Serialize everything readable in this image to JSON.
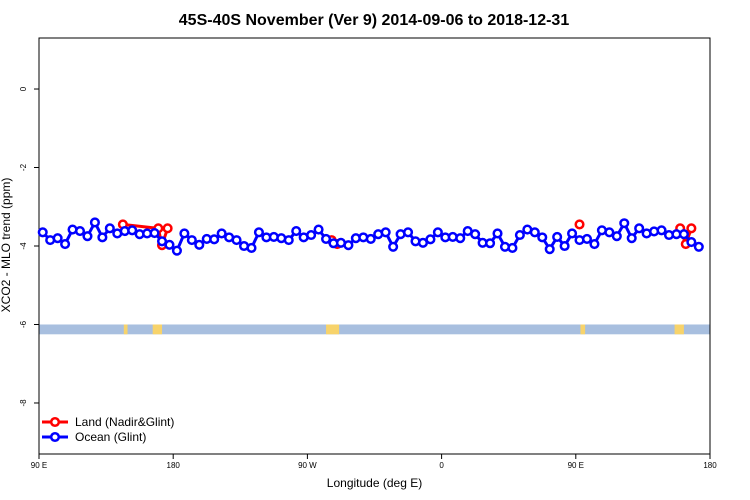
{
  "chart_data": {
    "type": "line",
    "title": "45S-40S November (Ver 9)   2014-09-06 to 2018-12-31",
    "xlabel": "Longitude (deg E)",
    "ylabel": "XCO2 - MLO trend (ppm)",
    "xlim": [
      90,
      450
    ],
    "ylim": [
      -9.3,
      1.3
    ],
    "x_ticks": [
      {
        "value": 90,
        "label": "90 E"
      },
      {
        "value": 162,
        "label": "180"
      },
      {
        "value": 234,
        "label": "90 W"
      },
      {
        "value": 306,
        "label": "0"
      },
      {
        "value": 378,
        "label": "90 E"
      },
      {
        "value": 450,
        "label": "180"
      }
    ],
    "y_ticks": [
      {
        "value": 0,
        "label": "0"
      },
      {
        "value": -2,
        "label": "-2"
      },
      {
        "value": -4,
        "label": "-4"
      },
      {
        "value": -6,
        "label": "-6"
      },
      {
        "value": -8,
        "label": "-8"
      }
    ],
    "colors": {
      "land": "#ff0000",
      "ocean": "#0000ff",
      "sea_band": "#a8bfdf",
      "land_band": "#f7d36b"
    },
    "surface_band": {
      "y_range": [
        -6.25,
        -6.0
      ],
      "land_ranges": [
        [
          135.5,
          137.5
        ],
        [
          151,
          156
        ],
        [
          244,
          251
        ],
        [
          380.5,
          383
        ],
        [
          431,
          436
        ]
      ]
    },
    "legend": {
      "position": "bottom-left"
    },
    "series": [
      {
        "name": "Land (Nadir&Glint)",
        "color": "#ff0000",
        "segments": [
          [
            [
              135,
              -3.45
            ],
            [
              154,
              -3.55
            ],
            [
              156,
              -3.98
            ],
            [
              159,
              -3.55
            ]
          ],
          [
            [
              247,
              -3.85
            ],
            [
              250,
              -3.95
            ]
          ],
          [
            [
              380,
              -3.45
            ]
          ],
          [
            [
              434,
              -3.55
            ],
            [
              437,
              -3.95
            ],
            [
              440,
              -3.55
            ]
          ]
        ]
      },
      {
        "name": "Ocean (Glint)",
        "color": "#0000ff",
        "values": [
          [
            92,
            -3.65
          ],
          [
            96,
            -3.85
          ],
          [
            100,
            -3.8
          ],
          [
            104,
            -3.95
          ],
          [
            108,
            -3.58
          ],
          [
            112,
            -3.62
          ],
          [
            116,
            -3.75
          ],
          [
            120,
            -3.4
          ],
          [
            124,
            -3.78
          ],
          [
            128,
            -3.55
          ],
          [
            132,
            -3.68
          ],
          [
            136,
            -3.62
          ],
          [
            140,
            -3.6
          ],
          [
            144,
            -3.7
          ],
          [
            148,
            -3.68
          ],
          [
            152,
            -3.67
          ],
          [
            156,
            -3.88
          ],
          [
            160,
            -3.97
          ],
          [
            164,
            -4.12
          ],
          [
            168,
            -3.68
          ],
          [
            172,
            -3.85
          ],
          [
            176,
            -3.97
          ],
          [
            180,
            -3.82
          ],
          [
            184,
            -3.83
          ],
          [
            188,
            -3.68
          ],
          [
            192,
            -3.78
          ],
          [
            196,
            -3.85
          ],
          [
            200,
            -4.0
          ],
          [
            204,
            -4.05
          ],
          [
            208,
            -3.65
          ],
          [
            212,
            -3.78
          ],
          [
            216,
            -3.77
          ],
          [
            220,
            -3.8
          ],
          [
            224,
            -3.85
          ],
          [
            228,
            -3.62
          ],
          [
            232,
            -3.78
          ],
          [
            236,
            -3.72
          ],
          [
            240,
            -3.58
          ],
          [
            244,
            -3.82
          ],
          [
            248,
            -3.93
          ],
          [
            252,
            -3.92
          ],
          [
            256,
            -3.98
          ],
          [
            260,
            -3.8
          ],
          [
            264,
            -3.78
          ],
          [
            268,
            -3.82
          ],
          [
            272,
            -3.7
          ],
          [
            276,
            -3.65
          ],
          [
            280,
            -4.02
          ],
          [
            284,
            -3.7
          ],
          [
            288,
            -3.65
          ],
          [
            292,
            -3.88
          ],
          [
            296,
            -3.92
          ],
          [
            300,
            -3.83
          ],
          [
            304,
            -3.65
          ],
          [
            308,
            -3.78
          ],
          [
            312,
            -3.77
          ],
          [
            316,
            -3.8
          ],
          [
            320,
            -3.62
          ],
          [
            324,
            -3.7
          ],
          [
            328,
            -3.92
          ],
          [
            332,
            -3.93
          ],
          [
            336,
            -3.68
          ],
          [
            340,
            -4.02
          ],
          [
            344,
            -4.05
          ],
          [
            348,
            -3.72
          ],
          [
            352,
            -3.58
          ],
          [
            356,
            -3.65
          ],
          [
            360,
            -3.78
          ],
          [
            364,
            -4.08
          ],
          [
            368,
            -3.77
          ],
          [
            372,
            -4.0
          ],
          [
            376,
            -3.68
          ],
          [
            380,
            -3.85
          ],
          [
            384,
            -3.82
          ],
          [
            388,
            -3.95
          ],
          [
            392,
            -3.6
          ],
          [
            396,
            -3.65
          ],
          [
            400,
            -3.75
          ],
          [
            404,
            -3.42
          ],
          [
            408,
            -3.8
          ],
          [
            412,
            -3.55
          ],
          [
            416,
            -3.68
          ],
          [
            420,
            -3.63
          ],
          [
            424,
            -3.6
          ],
          [
            428,
            -3.72
          ],
          [
            432,
            -3.7
          ],
          [
            436,
            -3.7
          ],
          [
            440,
            -3.9
          ],
          [
            444,
            -4.02
          ]
        ]
      }
    ]
  }
}
